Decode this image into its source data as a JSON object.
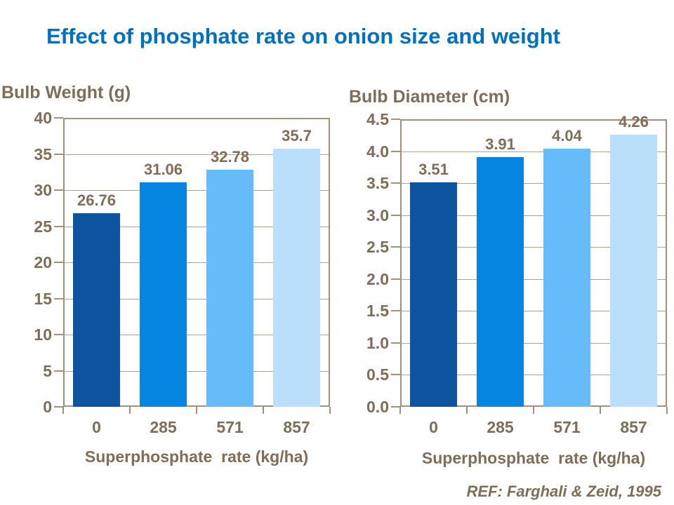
{
  "title": {
    "text": "Effect of phosphate rate on onion size and weight",
    "color": "#0070C0"
  },
  "reference": {
    "text": "REF: Farghali & Zeid, 1995"
  },
  "colors": {
    "title_blue": "#0070C0",
    "text_brown": "#7E6D58",
    "axis_frame": "#A2917A",
    "gridline": "#B1A48F",
    "bar_palette": [
      "#0E53A0",
      "#0584E2",
      "#66BBFA",
      "#BADFFB"
    ]
  },
  "chart_data": [
    {
      "type": "bar",
      "title": "Bulb Weight (g)",
      "xlabel": "Superphosphate  rate (kg/ha)",
      "ylabel": "",
      "categories": [
        "0",
        "285",
        "571",
        "857"
      ],
      "values": [
        26.76,
        31.06,
        32.78,
        35.7
      ],
      "value_labels": [
        "26.76",
        "31.06",
        "32.78",
        "35.7"
      ],
      "ylim": [
        0,
        40
      ],
      "yticks": [
        0,
        5,
        10,
        15,
        20,
        25,
        30,
        35,
        40
      ],
      "ytick_labels": [
        "0",
        "5",
        "10",
        "15",
        "20",
        "25",
        "30",
        "35",
        "40"
      ],
      "grid": true,
      "legend": "none"
    },
    {
      "type": "bar",
      "title": "Bulb Diameter (cm)",
      "xlabel": "Superphosphate  rate (kg/ha)",
      "ylabel": "",
      "categories": [
        "0",
        "285",
        "571",
        "857"
      ],
      "values": [
        3.51,
        3.91,
        4.04,
        4.26
      ],
      "value_labels": [
        "3.51",
        "3.91",
        "4.04",
        "4.26"
      ],
      "ylim": [
        0,
        4.5
      ],
      "yticks": [
        0,
        0.5,
        1.0,
        1.5,
        2.0,
        2.5,
        3.0,
        3.5,
        4.0,
        4.5
      ],
      "ytick_labels": [
        "0.0",
        "0.5",
        "1.0",
        "1.5",
        "2.0",
        "2.5",
        "3.0",
        "3.5",
        "4.0",
        "4.5"
      ],
      "grid": true,
      "legend": "none"
    }
  ]
}
